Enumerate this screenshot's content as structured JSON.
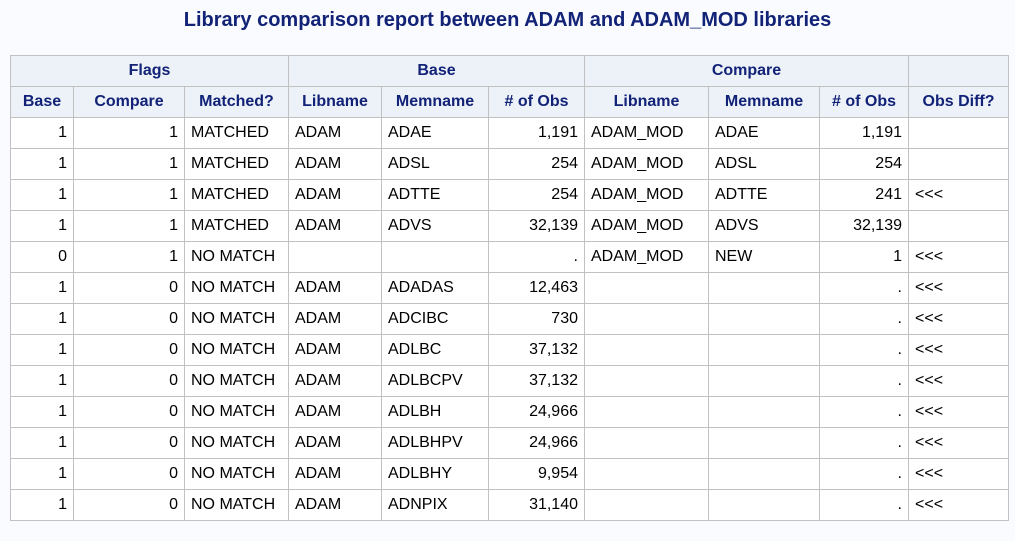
{
  "title": "Library comparison report between ADAM and ADAM_MOD libraries",
  "group_headers": {
    "flags": "Flags",
    "base": "Base",
    "compare": "Compare",
    "blank": ""
  },
  "columns": {
    "base": "Base",
    "compare": "Compare",
    "matched": "Matched?",
    "base_libname": "Libname",
    "base_memname": "Memname",
    "base_obs": "# of Obs",
    "cmp_libname": "Libname",
    "cmp_memname": "Memname",
    "cmp_obs": "# of Obs",
    "obs_diff": "Obs Diff?"
  },
  "rows": [
    {
      "base": "1",
      "compare": "1",
      "matched": "MATCHED",
      "base_libname": "ADAM",
      "base_memname": "ADAE",
      "base_obs": "1,191",
      "cmp_libname": "ADAM_MOD",
      "cmp_memname": "ADAE",
      "cmp_obs": "1,191",
      "obs_diff": ""
    },
    {
      "base": "1",
      "compare": "1",
      "matched": "MATCHED",
      "base_libname": "ADAM",
      "base_memname": "ADSL",
      "base_obs": "254",
      "cmp_libname": "ADAM_MOD",
      "cmp_memname": "ADSL",
      "cmp_obs": "254",
      "obs_diff": ""
    },
    {
      "base": "1",
      "compare": "1",
      "matched": "MATCHED",
      "base_libname": "ADAM",
      "base_memname": "ADTTE",
      "base_obs": "254",
      "cmp_libname": "ADAM_MOD",
      "cmp_memname": "ADTTE",
      "cmp_obs": "241",
      "obs_diff": "<<<"
    },
    {
      "base": "1",
      "compare": "1",
      "matched": "MATCHED",
      "base_libname": "ADAM",
      "base_memname": "ADVS",
      "base_obs": "32,139",
      "cmp_libname": "ADAM_MOD",
      "cmp_memname": "ADVS",
      "cmp_obs": "32,139",
      "obs_diff": ""
    },
    {
      "base": "0",
      "compare": "1",
      "matched": "NO MATCH",
      "base_libname": "",
      "base_memname": "",
      "base_obs": ".",
      "cmp_libname": "ADAM_MOD",
      "cmp_memname": "NEW",
      "cmp_obs": "1",
      "obs_diff": "<<<"
    },
    {
      "base": "1",
      "compare": "0",
      "matched": "NO MATCH",
      "base_libname": "ADAM",
      "base_memname": "ADADAS",
      "base_obs": "12,463",
      "cmp_libname": "",
      "cmp_memname": "",
      "cmp_obs": ".",
      "obs_diff": "<<<"
    },
    {
      "base": "1",
      "compare": "0",
      "matched": "NO MATCH",
      "base_libname": "ADAM",
      "base_memname": "ADCIBC",
      "base_obs": "730",
      "cmp_libname": "",
      "cmp_memname": "",
      "cmp_obs": ".",
      "obs_diff": "<<<"
    },
    {
      "base": "1",
      "compare": "0",
      "matched": "NO MATCH",
      "base_libname": "ADAM",
      "base_memname": "ADLBC",
      "base_obs": "37,132",
      "cmp_libname": "",
      "cmp_memname": "",
      "cmp_obs": ".",
      "obs_diff": "<<<"
    },
    {
      "base": "1",
      "compare": "0",
      "matched": "NO MATCH",
      "base_libname": "ADAM",
      "base_memname": "ADLBCPV",
      "base_obs": "37,132",
      "cmp_libname": "",
      "cmp_memname": "",
      "cmp_obs": ".",
      "obs_diff": "<<<"
    },
    {
      "base": "1",
      "compare": "0",
      "matched": "NO MATCH",
      "base_libname": "ADAM",
      "base_memname": "ADLBH",
      "base_obs": "24,966",
      "cmp_libname": "",
      "cmp_memname": "",
      "cmp_obs": ".",
      "obs_diff": "<<<"
    },
    {
      "base": "1",
      "compare": "0",
      "matched": "NO MATCH",
      "base_libname": "ADAM",
      "base_memname": "ADLBHPV",
      "base_obs": "24,966",
      "cmp_libname": "",
      "cmp_memname": "",
      "cmp_obs": ".",
      "obs_diff": "<<<"
    },
    {
      "base": "1",
      "compare": "0",
      "matched": "NO MATCH",
      "base_libname": "ADAM",
      "base_memname": "ADLBHY",
      "base_obs": "9,954",
      "cmp_libname": "",
      "cmp_memname": "",
      "cmp_obs": ".",
      "obs_diff": "<<<"
    },
    {
      "base": "1",
      "compare": "0",
      "matched": "NO MATCH",
      "base_libname": "ADAM",
      "base_memname": "ADNPIX",
      "base_obs": "31,140",
      "cmp_libname": "",
      "cmp_memname": "",
      "cmp_obs": ".",
      "obs_diff": "<<<"
    }
  ],
  "colors": {
    "header_text": "#112277",
    "header_bg": "#edf2f9",
    "border": "#c1c1c1"
  }
}
